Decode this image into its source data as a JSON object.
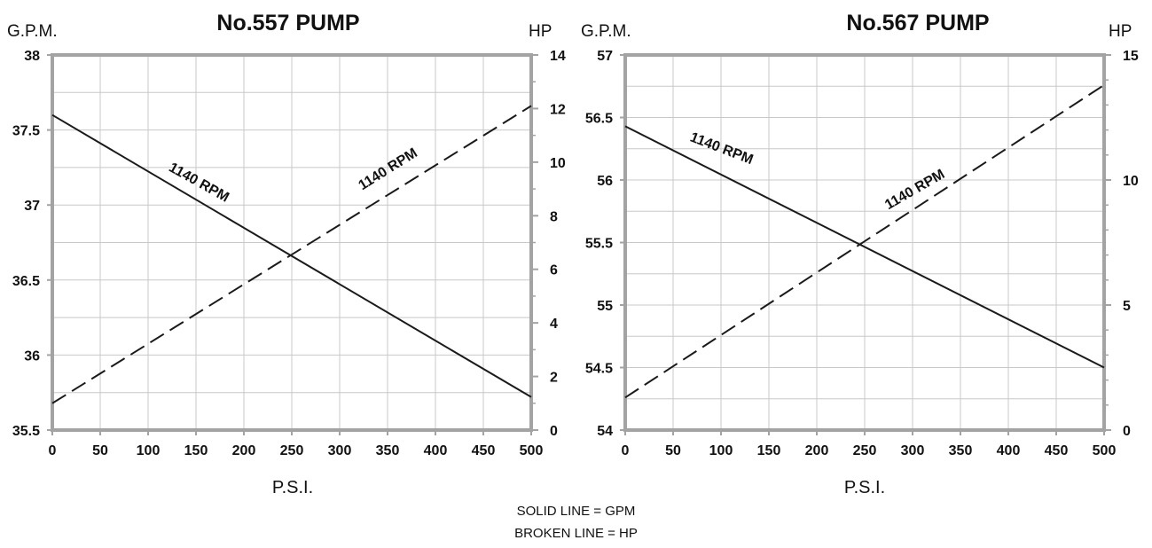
{
  "legend": {
    "solid": "SOLID LINE = GPM",
    "broken": "BROKEN LINE = HP"
  },
  "colors": {
    "frame": "#a3a3a3",
    "grid": "#c8c8c8",
    "line": "#1a1a1a",
    "text": "#111111"
  },
  "chart_data": [
    {
      "type": "line",
      "title": "No.557 PUMP",
      "ylabel": "G.P.M.",
      "y2label": "HP",
      "xlabel": "P.S.I.",
      "xlim": [
        0,
        500
      ],
      "ylim": [
        35.5,
        38
      ],
      "y2lim": [
        0,
        14
      ],
      "x_ticks": [
        0,
        50,
        100,
        150,
        200,
        250,
        300,
        350,
        400,
        450,
        500
      ],
      "y_ticks": [
        "35.5",
        "36",
        "36.5",
        "37",
        "37.5",
        "38"
      ],
      "y_tick_values": [
        35.5,
        36,
        36.5,
        37,
        37.5,
        38
      ],
      "y2_ticks": [
        0,
        2,
        4,
        6,
        8,
        10,
        12,
        14
      ],
      "grid": true,
      "series": [
        {
          "name": "1140 RPM",
          "style": "solid",
          "axis": "left",
          "x": [
            0,
            500
          ],
          "y": [
            37.6,
            35.72
          ]
        },
        {
          "name": "1140 RPM",
          "style": "broken",
          "axis": "right",
          "x": [
            0,
            500
          ],
          "y": [
            1.0,
            12.1
          ]
        }
      ]
    },
    {
      "type": "line",
      "title": "No.567 PUMP",
      "ylabel": "G.P.M.",
      "y2label": "HP",
      "xlabel": "P.S.I.",
      "xlim": [
        0,
        500
      ],
      "ylim": [
        54,
        57
      ],
      "y2lim": [
        0,
        15
      ],
      "x_ticks": [
        0,
        50,
        100,
        150,
        200,
        250,
        300,
        350,
        400,
        450,
        500
      ],
      "y_ticks": [
        "54",
        "54.5",
        "55",
        "55.5",
        "56",
        "56.5",
        "57"
      ],
      "y_tick_values": [
        54,
        54.5,
        55,
        55.5,
        56,
        56.5,
        57
      ],
      "y2_ticks": [
        0,
        5,
        10,
        15
      ],
      "grid": true,
      "series": [
        {
          "name": "1140 RPM",
          "style": "solid",
          "axis": "left",
          "x": [
            0,
            500
          ],
          "y": [
            56.43,
            54.5
          ]
        },
        {
          "name": "1140 RPM",
          "style": "broken",
          "axis": "right",
          "x": [
            0,
            500
          ],
          "y": [
            1.3,
            13.8
          ]
        }
      ]
    }
  ]
}
